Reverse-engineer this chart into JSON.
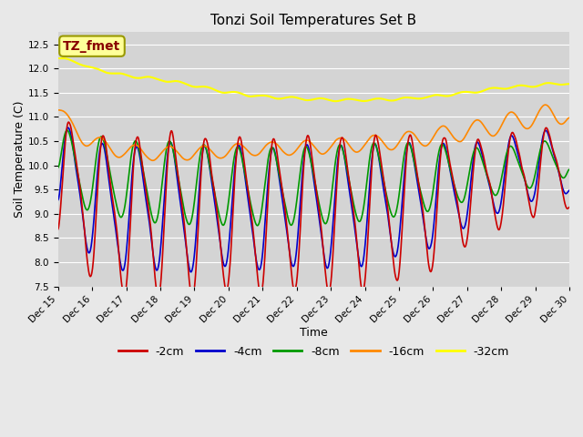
{
  "title": "Tonzi Soil Temperatures Set B",
  "xlabel": "Time",
  "ylabel": "Soil Temperature (C)",
  "ylim": [
    7.5,
    12.75
  ],
  "xlim": [
    0,
    15
  ],
  "fig_bg": "#e8e8e8",
  "plot_bg": "#d4d4d4",
  "grid_color": "#ffffff",
  "line_colors": {
    "-2cm": "#cc0000",
    "-4cm": "#0000cc",
    "-8cm": "#009900",
    "-16cm": "#ff8800",
    "-32cm": "#ffff00"
  },
  "annotation_text": "TZ_fmet",
  "annotation_bg": "#ffff99",
  "annotation_border": "#999900",
  "annotation_color": "#880000",
  "title_fontsize": 11,
  "axis_fontsize": 9,
  "tick_fontsize": 7.5,
  "legend_fontsize": 9
}
